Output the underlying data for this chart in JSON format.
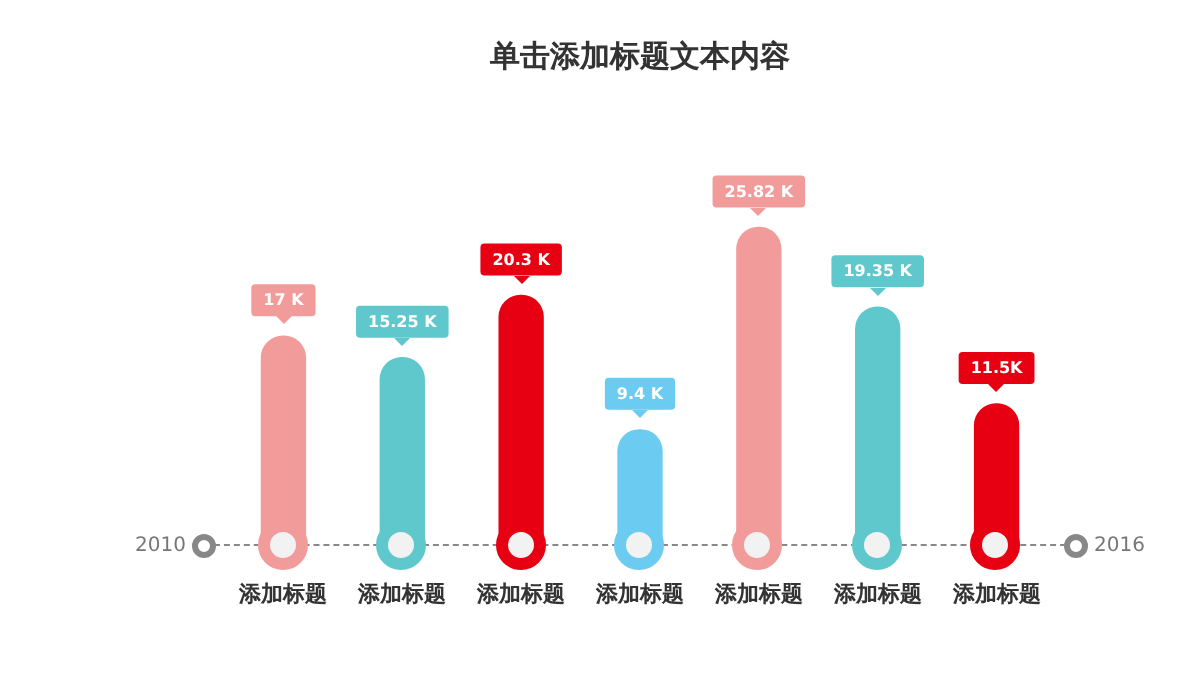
{
  "chart_data": {
    "type": "bar",
    "title": "单击添加标题文本内容",
    "categories": [
      "添加标题",
      "添加标题",
      "添加标题",
      "添加标题",
      "添加标题",
      "添加标题",
      "添加标题"
    ],
    "values": [
      17,
      15.25,
      20.3,
      9.4,
      25.82,
      19.35,
      11.5
    ],
    "colors": [
      "#f29b9b",
      "#5fc8cc",
      "#e60012",
      "#6ccbf0",
      "#f29b9b",
      "#5fc8cc",
      "#e60012"
    ],
    "value_labels": [
      "17 K",
      "15.25 K",
      "20.3 K",
      "9.4 K",
      "25.82 K",
      "19.35 K",
      "11.5K"
    ],
    "annotations": [
      "2010",
      "2016"
    ],
    "grid": false,
    "legend": false
  }
}
